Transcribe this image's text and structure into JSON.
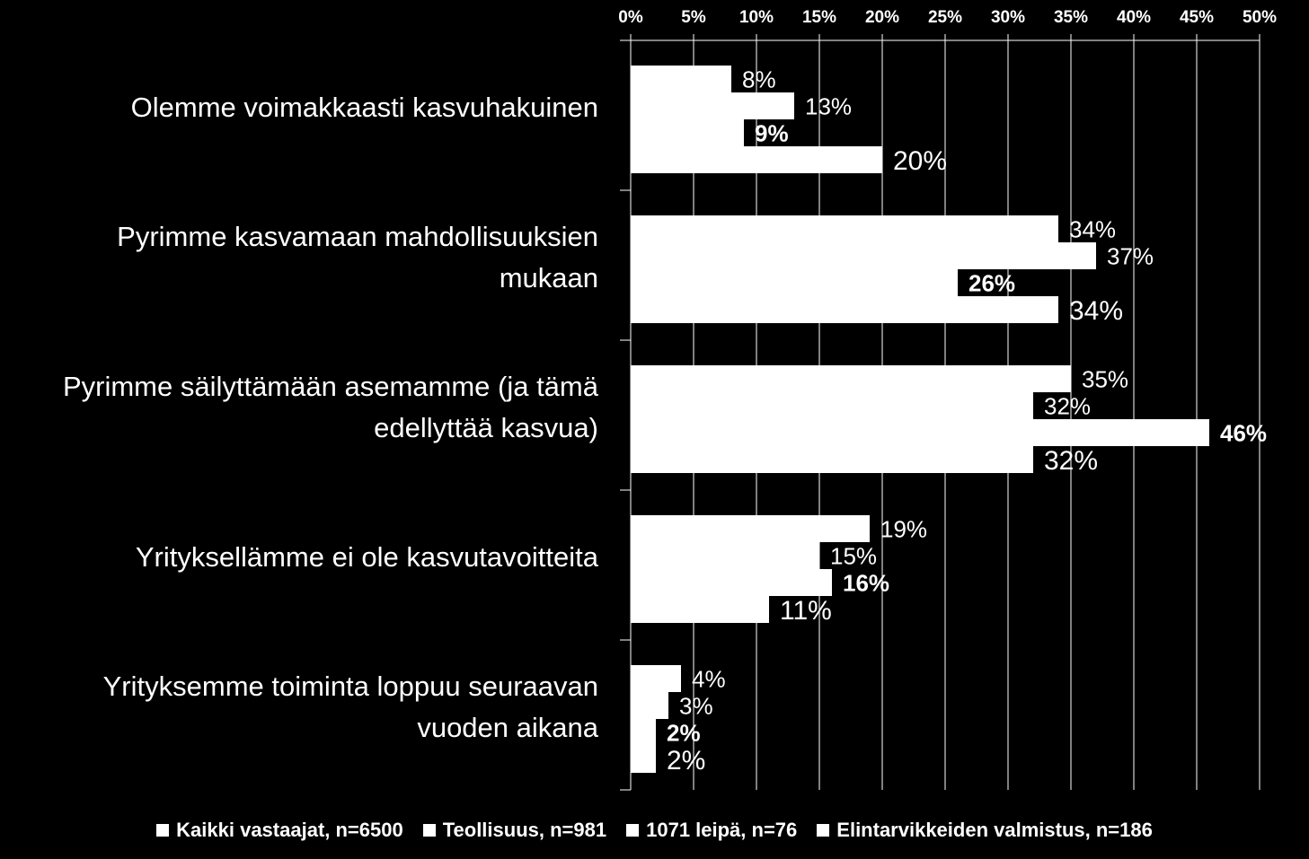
{
  "chart_data": {
    "type": "bar",
    "orientation": "horizontal",
    "title": "",
    "xlabel": "",
    "ylabel": "",
    "xlim": [
      0,
      50
    ],
    "x_ticks": [
      "0%",
      "5%",
      "10%",
      "15%",
      "20%",
      "25%",
      "30%",
      "35%",
      "40%",
      "45%",
      "50%"
    ],
    "x_axis_position": "top",
    "grid": true,
    "legend_position": "bottom",
    "categories": [
      "Olemme voimakkaasti kasvuhakuinen",
      "Pyrimme kasvamaan mahdollisuuksien mukaan",
      "Pyrimme säilyttämään asemamme (ja tämä edellyttää kasvua)",
      "Yrityksellämme ei ole kasvutavoitteita",
      "Yrityksemme toiminta loppuu seuraavan vuoden aikana"
    ],
    "category_lines": [
      [
        "Olemme voimakkaasti kasvuhakuinen"
      ],
      [
        "Pyrimme kasvamaan mahdollisuuksien",
        "mukaan"
      ],
      [
        "Pyrimme säilyttämään asemamme (ja tämä",
        "edellyttää kasvua)"
      ],
      [
        "Yrityksellämme ei ole kasvutavoitteita"
      ],
      [
        "Yrityksemme toiminta loppuu seuraavan",
        "vuoden aikana"
      ]
    ],
    "series": [
      {
        "name": "Kaikki vastaajat, n=6500",
        "values": [
          8,
          34,
          35,
          19,
          4
        ],
        "labels": [
          "8%",
          "34%",
          "35%",
          "19%",
          "4%"
        ]
      },
      {
        "name": "Teollisuus, n=981",
        "values": [
          13,
          37,
          32,
          15,
          3
        ],
        "labels": [
          "13%",
          "37%",
          "32%",
          "15%",
          "3%"
        ]
      },
      {
        "name": "1071 leipä, n=76",
        "values": [
          9,
          26,
          46,
          16,
          2
        ],
        "labels": [
          "9%",
          "26%",
          "46%",
          "16%",
          "2%"
        ]
      },
      {
        "name": "Elintarvikkeiden valmistus, n=186",
        "values": [
          20,
          34,
          32,
          11,
          2
        ],
        "labels": [
          "20%",
          "34%",
          "32%",
          "11%",
          "2%"
        ]
      }
    ],
    "colors": {
      "background": "#000000",
      "bars": "#ffffff",
      "text": "#ffffff",
      "grid": "#ffffff"
    }
  }
}
